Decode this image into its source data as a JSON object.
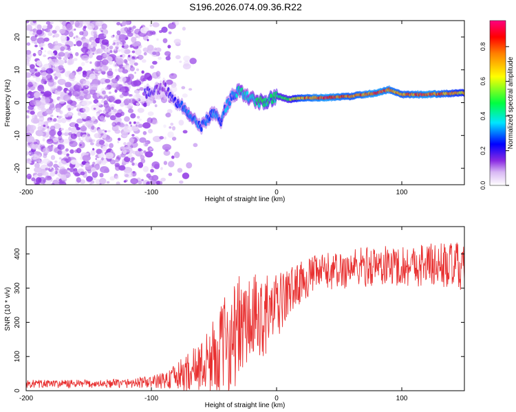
{
  "figure_title": "S196.2026.074.09.36.R22",
  "colors": {
    "line": "#e83030",
    "axis": "#000000",
    "colormap": [
      "#ffffff",
      "#d8b8f4",
      "#8a2be2",
      "#0000ff",
      "#00e5ff",
      "#00ff40",
      "#ffff00",
      "#ff8000",
      "#ff0000",
      "#ff0080"
    ]
  },
  "chart_data": [
    {
      "type": "heatmap",
      "title": "",
      "xlabel": "Height of straight line (km)",
      "ylabel": "Frequency (Hz)",
      "xlim": [
        -200,
        150
      ],
      "ylim": [
        -25,
        25
      ],
      "x_ticks": [
        -200,
        -100,
        0,
        100
      ],
      "x_tick_labels": [
        "-200",
        "-100",
        "0",
        "100"
      ],
      "y_ticks": [
        -20,
        -10,
        0,
        10,
        20
      ],
      "y_tick_labels": [
        "-20",
        "-10",
        "0",
        "10",
        "20"
      ],
      "colorbar": {
        "label": "Normalized spectral amplitude",
        "range": [
          0,
          0.95
        ],
        "ticks": [
          0.0,
          0.2,
          0.4,
          0.6,
          0.8
        ],
        "tick_labels": [
          "0.0",
          "0.2",
          "0.4",
          "0.6",
          "0.8"
        ]
      },
      "ridge": {
        "description": "dominant frequency ridge vs height",
        "x": [
          -100,
          -90,
          -80,
          -70,
          -60,
          -55,
          -50,
          -45,
          -40,
          -35,
          -30,
          -25,
          -20,
          -10,
          0,
          10,
          20,
          40,
          60,
          80,
          90,
          100,
          120,
          150
        ],
        "frequency": [
          3,
          5,
          0,
          -3,
          -7,
          -5,
          -3,
          -6,
          -1,
          2,
          4,
          2,
          1,
          0,
          2,
          1,
          1.5,
          1.5,
          2,
          3,
          4,
          2.5,
          2.5,
          3
        ],
        "amplitude": [
          0.2,
          0.15,
          0.25,
          0.35,
          0.3,
          0.3,
          0.35,
          0.3,
          0.35,
          0.3,
          0.45,
          0.4,
          0.4,
          0.5,
          0.5,
          0.55,
          0.8,
          0.9,
          0.8,
          0.9,
          0.85,
          0.8,
          0.9,
          0.7
        ]
      },
      "noise_region": {
        "x_range": [
          -200,
          -60
        ],
        "frequency_range": [
          -25,
          25
        ],
        "amplitude_range": [
          0.02,
          0.15
        ]
      }
    },
    {
      "type": "line",
      "title": "",
      "xlabel": "Height of straight line (km)",
      "ylabel": "SNR (10 * v/v)",
      "xlim": [
        -200,
        150
      ],
      "ylim": [
        0,
        480
      ],
      "x_ticks": [
        -200,
        -100,
        0,
        100
      ],
      "x_tick_labels": [
        "-200",
        "-100",
        "0",
        "100"
      ],
      "y_ticks": [
        0,
        100,
        200,
        300,
        400
      ],
      "y_tick_labels": [
        "0",
        "100",
        "200",
        "300",
        "400"
      ],
      "series": [
        {
          "name": "SNR",
          "x": [
            -200,
            -180,
            -160,
            -140,
            -120,
            -100,
            -90,
            -80,
            -70,
            -60,
            -50,
            -40,
            -30,
            -20,
            -10,
            0,
            10,
            20,
            30,
            40,
            50,
            60,
            80,
            100,
            120,
            140,
            150
          ],
          "mean": [
            20,
            20,
            20,
            20,
            22,
            25,
            30,
            40,
            55,
            70,
            100,
            140,
            180,
            200,
            220,
            240,
            290,
            320,
            340,
            350,
            350,
            360,
            365,
            365,
            370,
            365,
            360
          ],
          "spread": [
            12,
            12,
            12,
            12,
            14,
            18,
            25,
            40,
            60,
            80,
            110,
            150,
            160,
            140,
            120,
            100,
            70,
            60,
            55,
            55,
            55,
            60,
            60,
            60,
            65,
            70,
            70
          ]
        }
      ]
    }
  ]
}
